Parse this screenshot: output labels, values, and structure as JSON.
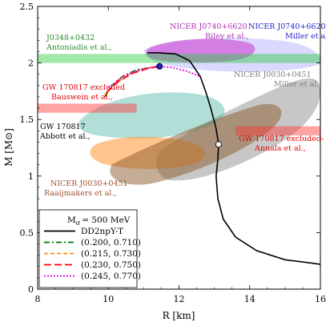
{
  "chart_data": {
    "type": "line",
    "xlabel": "R [km]",
    "ylabel": "M [M⊙]",
    "xlim": [
      8,
      16
    ],
    "ylim": [
      0,
      2.5
    ],
    "x_ticks": [
      "8",
      "10",
      "12",
      "14",
      "16"
    ],
    "y_ticks": [
      "0",
      "0.5",
      "1",
      "1.5",
      "2",
      "2.5"
    ],
    "legend": {
      "placement": "bottom-left",
      "title": "M",
      "title_sub": "σ",
      "title_value": "= 500 MeV",
      "entries": [
        {
          "label": "DD2npY-T",
          "color": "#000000",
          "dash": "solid"
        },
        {
          "label": "(0.200, 0.710)",
          "color": "#007a00",
          "dash": "dashdot"
        },
        {
          "label": "(0.215, 0.730)",
          "color": "#ff8c1a",
          "dash": "dashed"
        },
        {
          "label": "(0.230, 0.750)",
          "color": "#ff0000",
          "dash": "longdash"
        },
        {
          "label": "(0.245, 0.770)",
          "color": "#e600e6",
          "dash": "dotted"
        }
      ]
    },
    "series": [
      {
        "name": "DD2npY-T",
        "color": "#000000",
        "points": [
          [
            16.0,
            0.22
          ],
          [
            15.0,
            0.26
          ],
          [
            14.2,
            0.34
          ],
          [
            13.6,
            0.46
          ],
          [
            13.25,
            0.62
          ],
          [
            13.1,
            0.8
          ],
          [
            13.05,
            1.0
          ],
          [
            13.1,
            1.15
          ],
          [
            13.12,
            1.28
          ],
          [
            13.05,
            1.42
          ],
          [
            12.9,
            1.6
          ],
          [
            12.75,
            1.75
          ],
          [
            12.6,
            1.88
          ],
          [
            12.3,
            2.02
          ],
          [
            11.9,
            2.08
          ],
          [
            11.4,
            2.09
          ],
          [
            11.1,
            2.09
          ]
        ]
      },
      {
        "name": "(0.200, 0.710)",
        "color": "#007a00",
        "points": [
          [
            9.9,
            1.7
          ],
          [
            10.1,
            1.8
          ],
          [
            10.4,
            1.88
          ],
          [
            10.8,
            1.94
          ],
          [
            11.2,
            1.96
          ],
          [
            11.4,
            1.97
          ]
        ]
      },
      {
        "name": "(0.215, 0.730)",
        "color": "#ff8c1a",
        "points": [
          [
            9.9,
            1.72
          ],
          [
            10.2,
            1.82
          ],
          [
            10.6,
            1.9
          ],
          [
            11.0,
            1.95
          ],
          [
            11.4,
            1.97
          ]
        ]
      },
      {
        "name": "(0.230, 0.750)",
        "color": "#ff0000",
        "points": [
          [
            9.95,
            1.74
          ],
          [
            10.3,
            1.84
          ],
          [
            10.7,
            1.91
          ],
          [
            11.1,
            1.95
          ],
          [
            11.45,
            1.97
          ]
        ]
      },
      {
        "name": "(0.245, 0.770)",
        "color": "#e600e6",
        "points": [
          [
            10.0,
            1.78
          ],
          [
            10.4,
            1.88
          ],
          [
            10.9,
            1.94
          ],
          [
            11.4,
            1.97
          ],
          [
            11.8,
            1.96
          ],
          [
            12.2,
            1.93
          ],
          [
            12.6,
            1.88
          ]
        ]
      }
    ],
    "markers": [
      {
        "kind": "blue-dot",
        "x": 11.45,
        "y": 1.97,
        "color": "#1f1fcc"
      },
      {
        "kind": "open-circle",
        "x": 13.12,
        "y": 1.28,
        "color": "#ffffff"
      }
    ],
    "bands": [
      {
        "label": "J0348+0432 band",
        "kind": "horizontal",
        "y": [
          2.0,
          2.08
        ],
        "x": [
          8,
          16
        ],
        "color": "#2ecc40"
      },
      {
        "label": "GW 170817 excluded (left)",
        "kind": "horizontal",
        "y": [
          1.56,
          1.64
        ],
        "x": [
          8,
          10.8
        ],
        "color": "#ff3333"
      },
      {
        "label": "GW 170817 excluded (right)",
        "kind": "horizontal",
        "y": [
          1.36,
          1.44
        ],
        "x": [
          13.6,
          16
        ],
        "color": "#ff3333"
      }
    ],
    "regions": [
      {
        "label": "NICER J0740+6620 Riley",
        "color": "#cc33cc",
        "opacity": 0.55
      },
      {
        "label": "NICER J0740+6620 Miller",
        "color": "#b3b3ff",
        "opacity": 0.5
      },
      {
        "label": "NICER J0030+0451 Miller",
        "color": "#999999",
        "opacity": 0.6
      },
      {
        "label": "GW 170817 Abbott",
        "color": "#3cb09a",
        "opacity": 0.4
      },
      {
        "label": "NICER J0030+0451 Raaijmakers",
        "color": "#ff8c1a",
        "opacity": 0.5
      },
      {
        "label": "Raaijmakers brown",
        "color": "#8b5a2b",
        "opacity": 0.55
      }
    ],
    "annotations": [
      {
        "lines": [
          "J0348+0432",
          "Antoniadis et al.,"
        ],
        "color": "#2e8b2e"
      },
      {
        "lines": [
          "NICER J0740+6620",
          "Riley et al.,"
        ],
        "color": "#b030b0"
      },
      {
        "lines": [
          "NICER J0740+6620",
          "Miller et al.,"
        ],
        "color": "#1f1fcc"
      },
      {
        "lines": [
          "GW 170817 excluded",
          "Bauswein et al.,"
        ],
        "color": "#e60000"
      },
      {
        "lines": [
          "NICER J0030+0451",
          "Miller et al.,"
        ],
        "color": "#808080"
      },
      {
        "lines": [
          "GW 170817",
          "Abbott et al.,"
        ],
        "color": "#000000"
      },
      {
        "lines": [
          "GW 170817 excluded-",
          "Annala et al.,"
        ],
        "color": "#e60000"
      },
      {
        "lines": [
          "NICER J0030+0451",
          "Raaijmakers et al.,"
        ],
        "color": "#a0522d"
      }
    ]
  }
}
